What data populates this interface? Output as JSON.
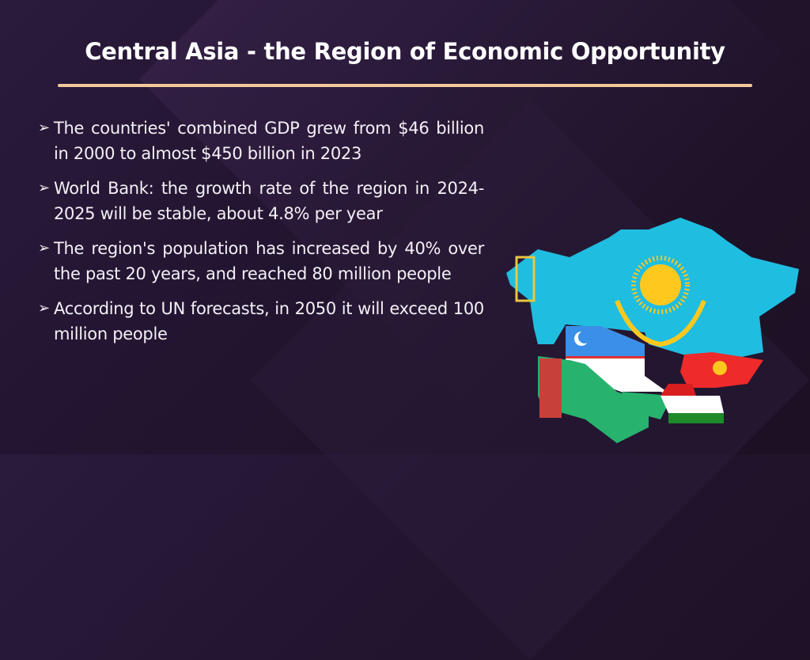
{
  "slide": {
    "title": "Central Asia - the Region of Economic Opportunity",
    "accent_color": "#f2c99a",
    "bullet_icon": "arrowhead-bullet",
    "bullet_glyph": "➢",
    "bullets": [
      "The countries' combined GDP grew from $46 billion in 2000 to almost $450 billion in 2023",
      "World Bank: the growth rate of the region in 2024-2025 will be stable, about 4.8% per year",
      "The region's population has increased by 40% over the past 20 years, and reached 80 million people",
      "According to UN forecasts, in 2050 it will exceed 100 million people"
    ]
  },
  "map": {
    "colors": {
      "kazakhstan": "#1fbde0",
      "sun": "#ffc81e",
      "uzbekistan_blue": "#3a8fe8",
      "turkmenistan": "#27b36e",
      "kyrgyzstan": "#ee2a2a",
      "tajikistan_red": "#d81e1e",
      "tajikistan_green": "#1e8a2a"
    }
  }
}
